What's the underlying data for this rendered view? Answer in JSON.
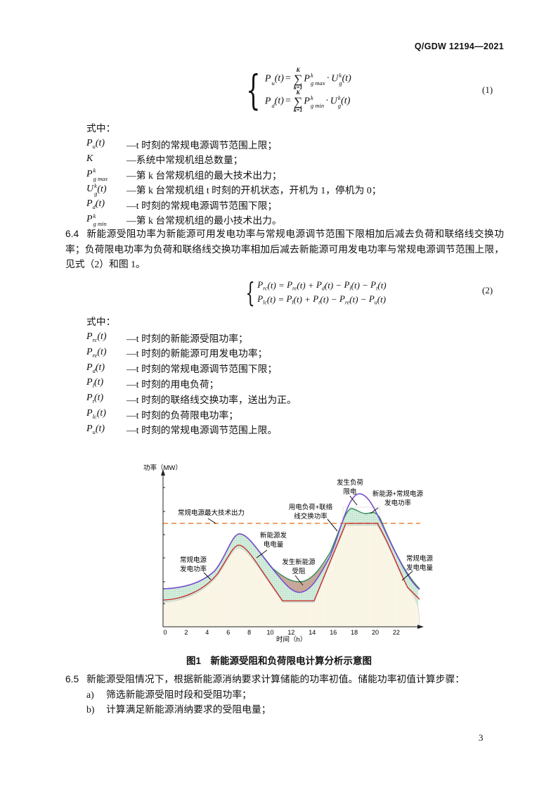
{
  "header": {
    "doc_code": "Q/GDW 12194—2021"
  },
  "formula1": {
    "number": "(1)",
    "rows": [
      {
        "lhs": "P",
        "lhs_sub": "u",
        "arg": "(t)",
        "eq": "=",
        "sum": "∑",
        "sum_top": "K",
        "sum_bot": "k=1",
        "p": "P",
        "p_sup": "k",
        "p_sub": "g max",
        "dot": "·",
        "u": "U",
        "u_sup": "k",
        "u_sub": "g",
        "u_arg": "(t)"
      },
      {
        "lhs": "P",
        "lhs_sub": "d",
        "arg": "(t)",
        "eq": "=",
        "sum": "∑",
        "sum_top": "K",
        "sum_bot": "k=1",
        "p": "P",
        "p_sup": "k",
        "p_sub": "g min",
        "dot": "·",
        "u": "U",
        "u_sup": "k",
        "u_sub": "g",
        "u_arg": "(t)"
      }
    ]
  },
  "where1": {
    "label": "式中：",
    "items": [
      {
        "sym": "P",
        "sub": "u",
        "sup": "",
        "arg": "(t)",
        "desc": "—t 时刻的常规电源调节范围上限；"
      },
      {
        "sym": "K",
        "sub": "",
        "sup": "",
        "arg": "",
        "desc": "—系统中常规机组总数量；"
      },
      {
        "sym": "P",
        "sub": "g max",
        "sup": "k",
        "arg": "",
        "desc": "—第 k 台常规机组的最大技术出力；"
      },
      {
        "sym": "U",
        "sub": "g",
        "sup": "k",
        "arg": "(t)",
        "desc": "—第 k 台常规机组 t 时刻的开机状态，开机为 1，停机为 0；"
      },
      {
        "sym": "P",
        "sub": "d",
        "sup": "",
        "arg": "(t)",
        "desc": "—t 时刻的常规电源调节范围下限；"
      },
      {
        "sym": "P",
        "sub": "g min",
        "sup": "k",
        "arg": "",
        "desc": "—第 k 台常规机组的最小技术出力。"
      }
    ]
  },
  "section_6_4": {
    "number": "6.4",
    "text": "新能源受阻功率为新能源可用发电功率与常规电源调节范围下限相加后减去负荷和联络线交换功率；负荷限电功率为负荷和联络线交换功率相加后减去新能源可用发电功率与常规电源调节范围上限，见式（2）和图 1。"
  },
  "formula2": {
    "number": "(2)",
    "rows": [
      [
        {
          "s": "P",
          "sub": "rc"
        },
        {
          "t": "(t) = "
        },
        {
          "s": "P",
          "sub": "re"
        },
        {
          "t": "(t) + "
        },
        {
          "s": "P",
          "sub": "d"
        },
        {
          "t": "(t) − "
        },
        {
          "s": "P",
          "sub": "l"
        },
        {
          "t": "(t) − "
        },
        {
          "s": "P",
          "sub": "t"
        },
        {
          "t": "(t)"
        }
      ],
      [
        {
          "s": "P",
          "sub": "lc"
        },
        {
          "t": "(t) = "
        },
        {
          "s": "P",
          "sub": "l"
        },
        {
          "t": "(t) + "
        },
        {
          "s": "P",
          "sub": "t"
        },
        {
          "t": "(t) − "
        },
        {
          "s": "P",
          "sub": "re"
        },
        {
          "t": "(t) − "
        },
        {
          "s": "P",
          "sub": "u"
        },
        {
          "t": "(t)"
        }
      ]
    ]
  },
  "where2": {
    "label": "式中：",
    "items": [
      {
        "sym": "P",
        "sub": "rc",
        "sup": "",
        "arg": "(t)",
        "desc": "—t 时刻的新能源受阻功率；"
      },
      {
        "sym": "P",
        "sub": "re",
        "sup": "",
        "arg": "(t)",
        "desc": "—t 时刻的新能源可用发电功率；"
      },
      {
        "sym": "P",
        "sub": "d",
        "sup": "",
        "arg": "(t)",
        "desc": "—t 时刻的常规电源调节范围下限；"
      },
      {
        "sym": "P",
        "sub": "l",
        "sup": "",
        "arg": "(t)",
        "desc": "—t 时刻的用电负荷；"
      },
      {
        "sym": "P",
        "sub": "t",
        "sup": "",
        "arg": "(t)",
        "desc": "—t 时刻的联络线交换功率，送出为正。"
      },
      {
        "sym": "P",
        "sub": "lc",
        "sup": "",
        "arg": "(t)",
        "desc": "—t 时刻的负荷限电功率；"
      },
      {
        "sym": "P",
        "sub": "u",
        "sup": "",
        "arg": "(t)",
        "desc": "—t 时刻的常规电源调节范围上限。"
      }
    ]
  },
  "figure1": {
    "y_label": "功率（MW）",
    "x_label": "时间（h）",
    "x_ticks": [
      "0",
      "2",
      "4",
      "6",
      "8",
      "10",
      "12",
      "14",
      "16",
      "18",
      "20",
      "22"
    ],
    "annotations": {
      "max_output": "常规电源最大技术出力",
      "renewable_energy": [
        "新能源发",
        "电电量"
      ],
      "conv_power": [
        "常规电源",
        "发电功率"
      ],
      "curtailment": [
        "发生新能源",
        "受阻"
      ],
      "load_tie": [
        "用电负荷+联络",
        "线交换功率"
      ],
      "load_shed": [
        "发生负荷",
        "限电"
      ],
      "total_power": [
        "新能源+常规电源",
        "发电功率"
      ],
      "conv_energy": [
        "常规电源",
        "发电电量"
      ]
    },
    "colors": {
      "total_gen": "#7a4fd0",
      "load_tie": "#2e8b57",
      "conv_gen": "#cc2222",
      "max_output": "#e8833a",
      "renewable_fill": "#d6eedf",
      "curtail_fill": "#c7a898",
      "conv_fill": "#fbf7e8"
    },
    "caption": "图1　新能源受阻和负荷限电计算分析示意图"
  },
  "section_6_5": {
    "number": "6.5",
    "text": "新能源受阻情况下，根据新能源消纳要求计算储能的功率初值。储能功率初值计算步骤：",
    "steps": [
      {
        "marker": "a)",
        "text": "筛选新能源受阻时段和受阻功率；"
      },
      {
        "marker": "b)",
        "text": "计算满足新能源消纳要求的受阻电量；"
      }
    ]
  },
  "page_number": "3"
}
